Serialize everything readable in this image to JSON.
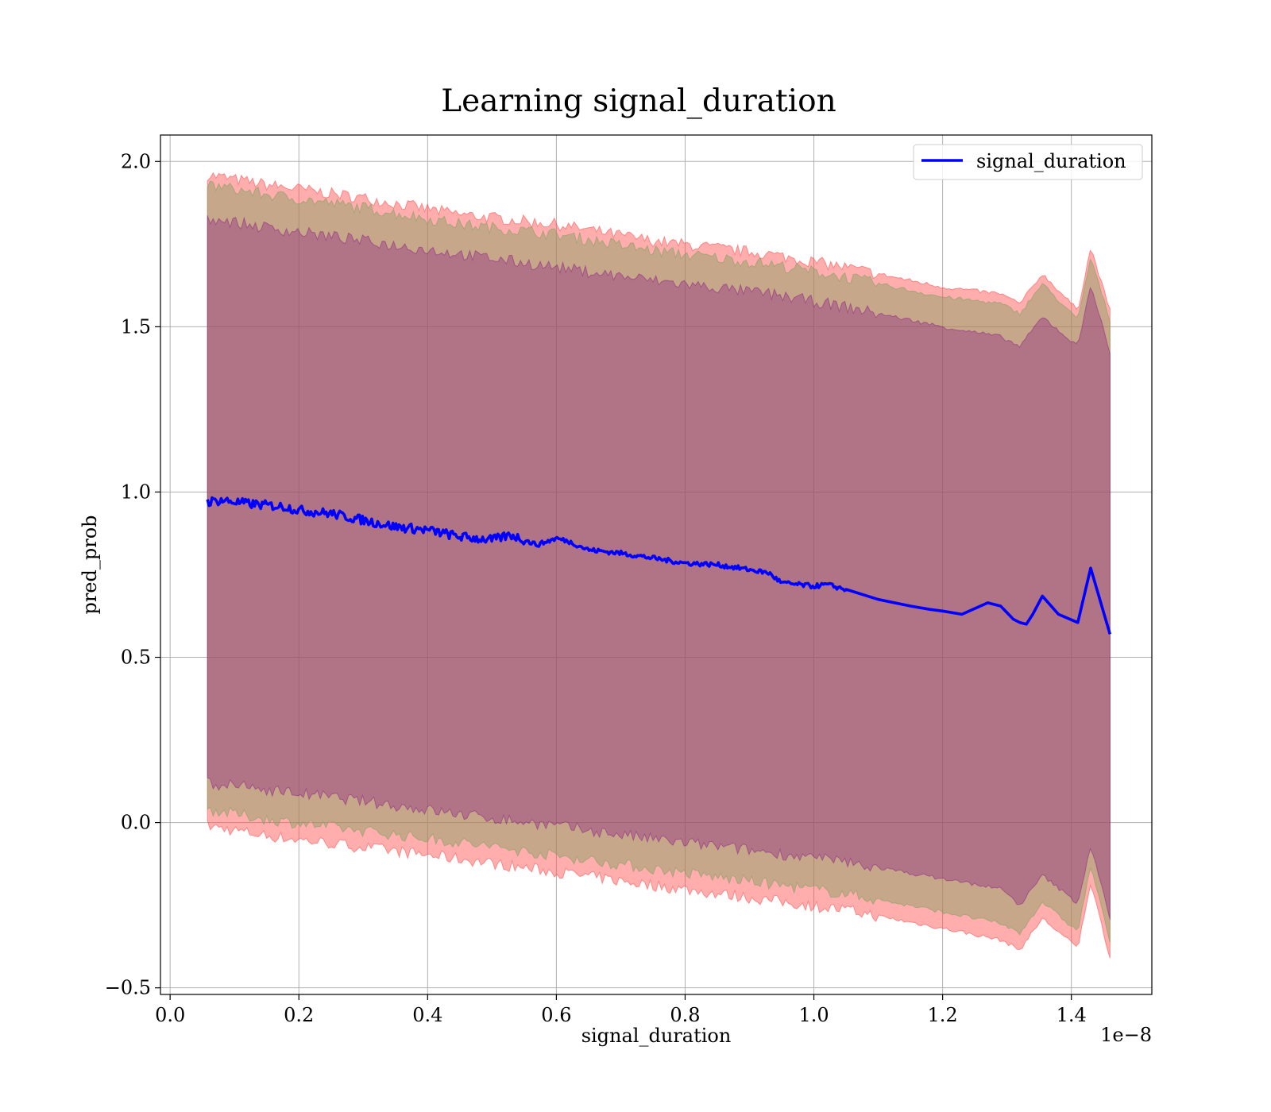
{
  "chart_data": {
    "type": "area",
    "title": "Learning signal_duration",
    "xlabel": "signal_duration",
    "ylabel": "pred_prob",
    "x_offset_label": "1e−8",
    "xlim": [
      -0.015,
      1.525
    ],
    "ylim": [
      -0.52,
      2.08
    ],
    "grid": true,
    "legend_position": "upper right",
    "x_ticks": [
      {
        "value": 0.0,
        "label": "0.0"
      },
      {
        "value": 0.2,
        "label": "0.2"
      },
      {
        "value": 0.4,
        "label": "0.4"
      },
      {
        "value": 0.6,
        "label": "0.6"
      },
      {
        "value": 0.8,
        "label": "0.8"
      },
      {
        "value": 1.0,
        "label": "1.0"
      },
      {
        "value": 1.2,
        "label": "1.2"
      },
      {
        "value": 1.4,
        "label": "1.4"
      }
    ],
    "y_ticks": [
      {
        "value": -0.5,
        "label": "−0.5"
      },
      {
        "value": 0.0,
        "label": "0.0"
      },
      {
        "value": 0.5,
        "label": "0.5"
      },
      {
        "value": 1.0,
        "label": "1.0"
      },
      {
        "value": 1.5,
        "label": "1.5"
      },
      {
        "value": 2.0,
        "label": "2.0"
      }
    ],
    "series": [
      {
        "name": "signal_duration",
        "color": "#0000ff",
        "x": [
          0.058,
          0.08,
          0.1,
          0.12,
          0.15,
          0.18,
          0.2,
          0.25,
          0.3,
          0.35,
          0.4,
          0.45,
          0.5,
          0.53,
          0.55,
          0.57,
          0.6,
          0.62,
          0.65,
          0.7,
          0.75,
          0.8,
          0.85,
          0.9,
          0.93,
          0.95,
          1.0,
          1.02,
          1.05,
          1.1,
          1.15,
          1.18,
          1.2,
          1.23,
          1.27,
          1.29,
          1.31,
          1.32,
          1.33,
          1.34,
          1.355,
          1.38,
          1.41,
          1.43,
          1.46
        ],
        "y": [
          0.97,
          0.975,
          0.97,
          0.965,
          0.96,
          0.955,
          0.945,
          0.935,
          0.915,
          0.895,
          0.885,
          0.865,
          0.855,
          0.87,
          0.855,
          0.84,
          0.86,
          0.85,
          0.825,
          0.815,
          0.8,
          0.785,
          0.78,
          0.765,
          0.755,
          0.725,
          0.715,
          0.72,
          0.705,
          0.675,
          0.655,
          0.645,
          0.64,
          0.63,
          0.665,
          0.655,
          0.615,
          0.605,
          0.6,
          0.63,
          0.685,
          0.63,
          0.605,
          0.77,
          0.57
        ]
      }
    ],
    "bands": [
      {
        "role": "outer",
        "color": "#ff4a4a",
        "opacity": 0.45,
        "x": [
          0.058,
          0.15,
          0.3,
          0.45,
          0.6,
          0.75,
          0.93,
          1.05,
          1.2,
          1.29,
          1.32,
          1.355,
          1.41,
          1.43,
          1.46
        ],
        "lower": [
          -0.01,
          -0.04,
          -0.075,
          -0.11,
          -0.15,
          -0.19,
          -0.235,
          -0.265,
          -0.32,
          -0.355,
          -0.385,
          -0.29,
          -0.38,
          -0.18,
          -0.41
        ],
        "upper": [
          1.96,
          1.93,
          1.89,
          1.84,
          1.81,
          1.76,
          1.72,
          1.68,
          1.62,
          1.6,
          1.57,
          1.66,
          1.55,
          1.74,
          1.55
        ]
      },
      {
        "role": "middle",
        "color": "#80a060",
        "opacity": 0.45,
        "x": [
          0.058,
          0.15,
          0.3,
          0.45,
          0.6,
          0.75,
          0.93,
          1.05,
          1.2,
          1.29,
          1.32,
          1.355,
          1.41,
          1.43,
          1.46
        ],
        "lower": [
          0.04,
          0.01,
          -0.025,
          -0.06,
          -0.1,
          -0.14,
          -0.185,
          -0.215,
          -0.27,
          -0.305,
          -0.335,
          -0.24,
          -0.33,
          -0.13,
          -0.36
        ],
        "upper": [
          1.93,
          1.9,
          1.86,
          1.81,
          1.78,
          1.73,
          1.69,
          1.65,
          1.59,
          1.57,
          1.54,
          1.63,
          1.52,
          1.71,
          1.52
        ]
      },
      {
        "role": "inner",
        "color": "#800080",
        "opacity": 0.3,
        "x": [
          0.058,
          0.15,
          0.3,
          0.45,
          0.6,
          0.75,
          0.93,
          1.05,
          1.2,
          1.29,
          1.32,
          1.355,
          1.41,
          1.43,
          1.46
        ],
        "lower": [
          0.12,
          0.1,
          0.065,
          0.025,
          -0.01,
          -0.05,
          -0.09,
          -0.12,
          -0.17,
          -0.2,
          -0.25,
          -0.16,
          -0.245,
          -0.07,
          -0.29
        ],
        "upper": [
          1.83,
          1.8,
          1.76,
          1.72,
          1.68,
          1.64,
          1.6,
          1.56,
          1.5,
          1.47,
          1.44,
          1.53,
          1.44,
          1.63,
          1.42
        ]
      }
    ]
  }
}
